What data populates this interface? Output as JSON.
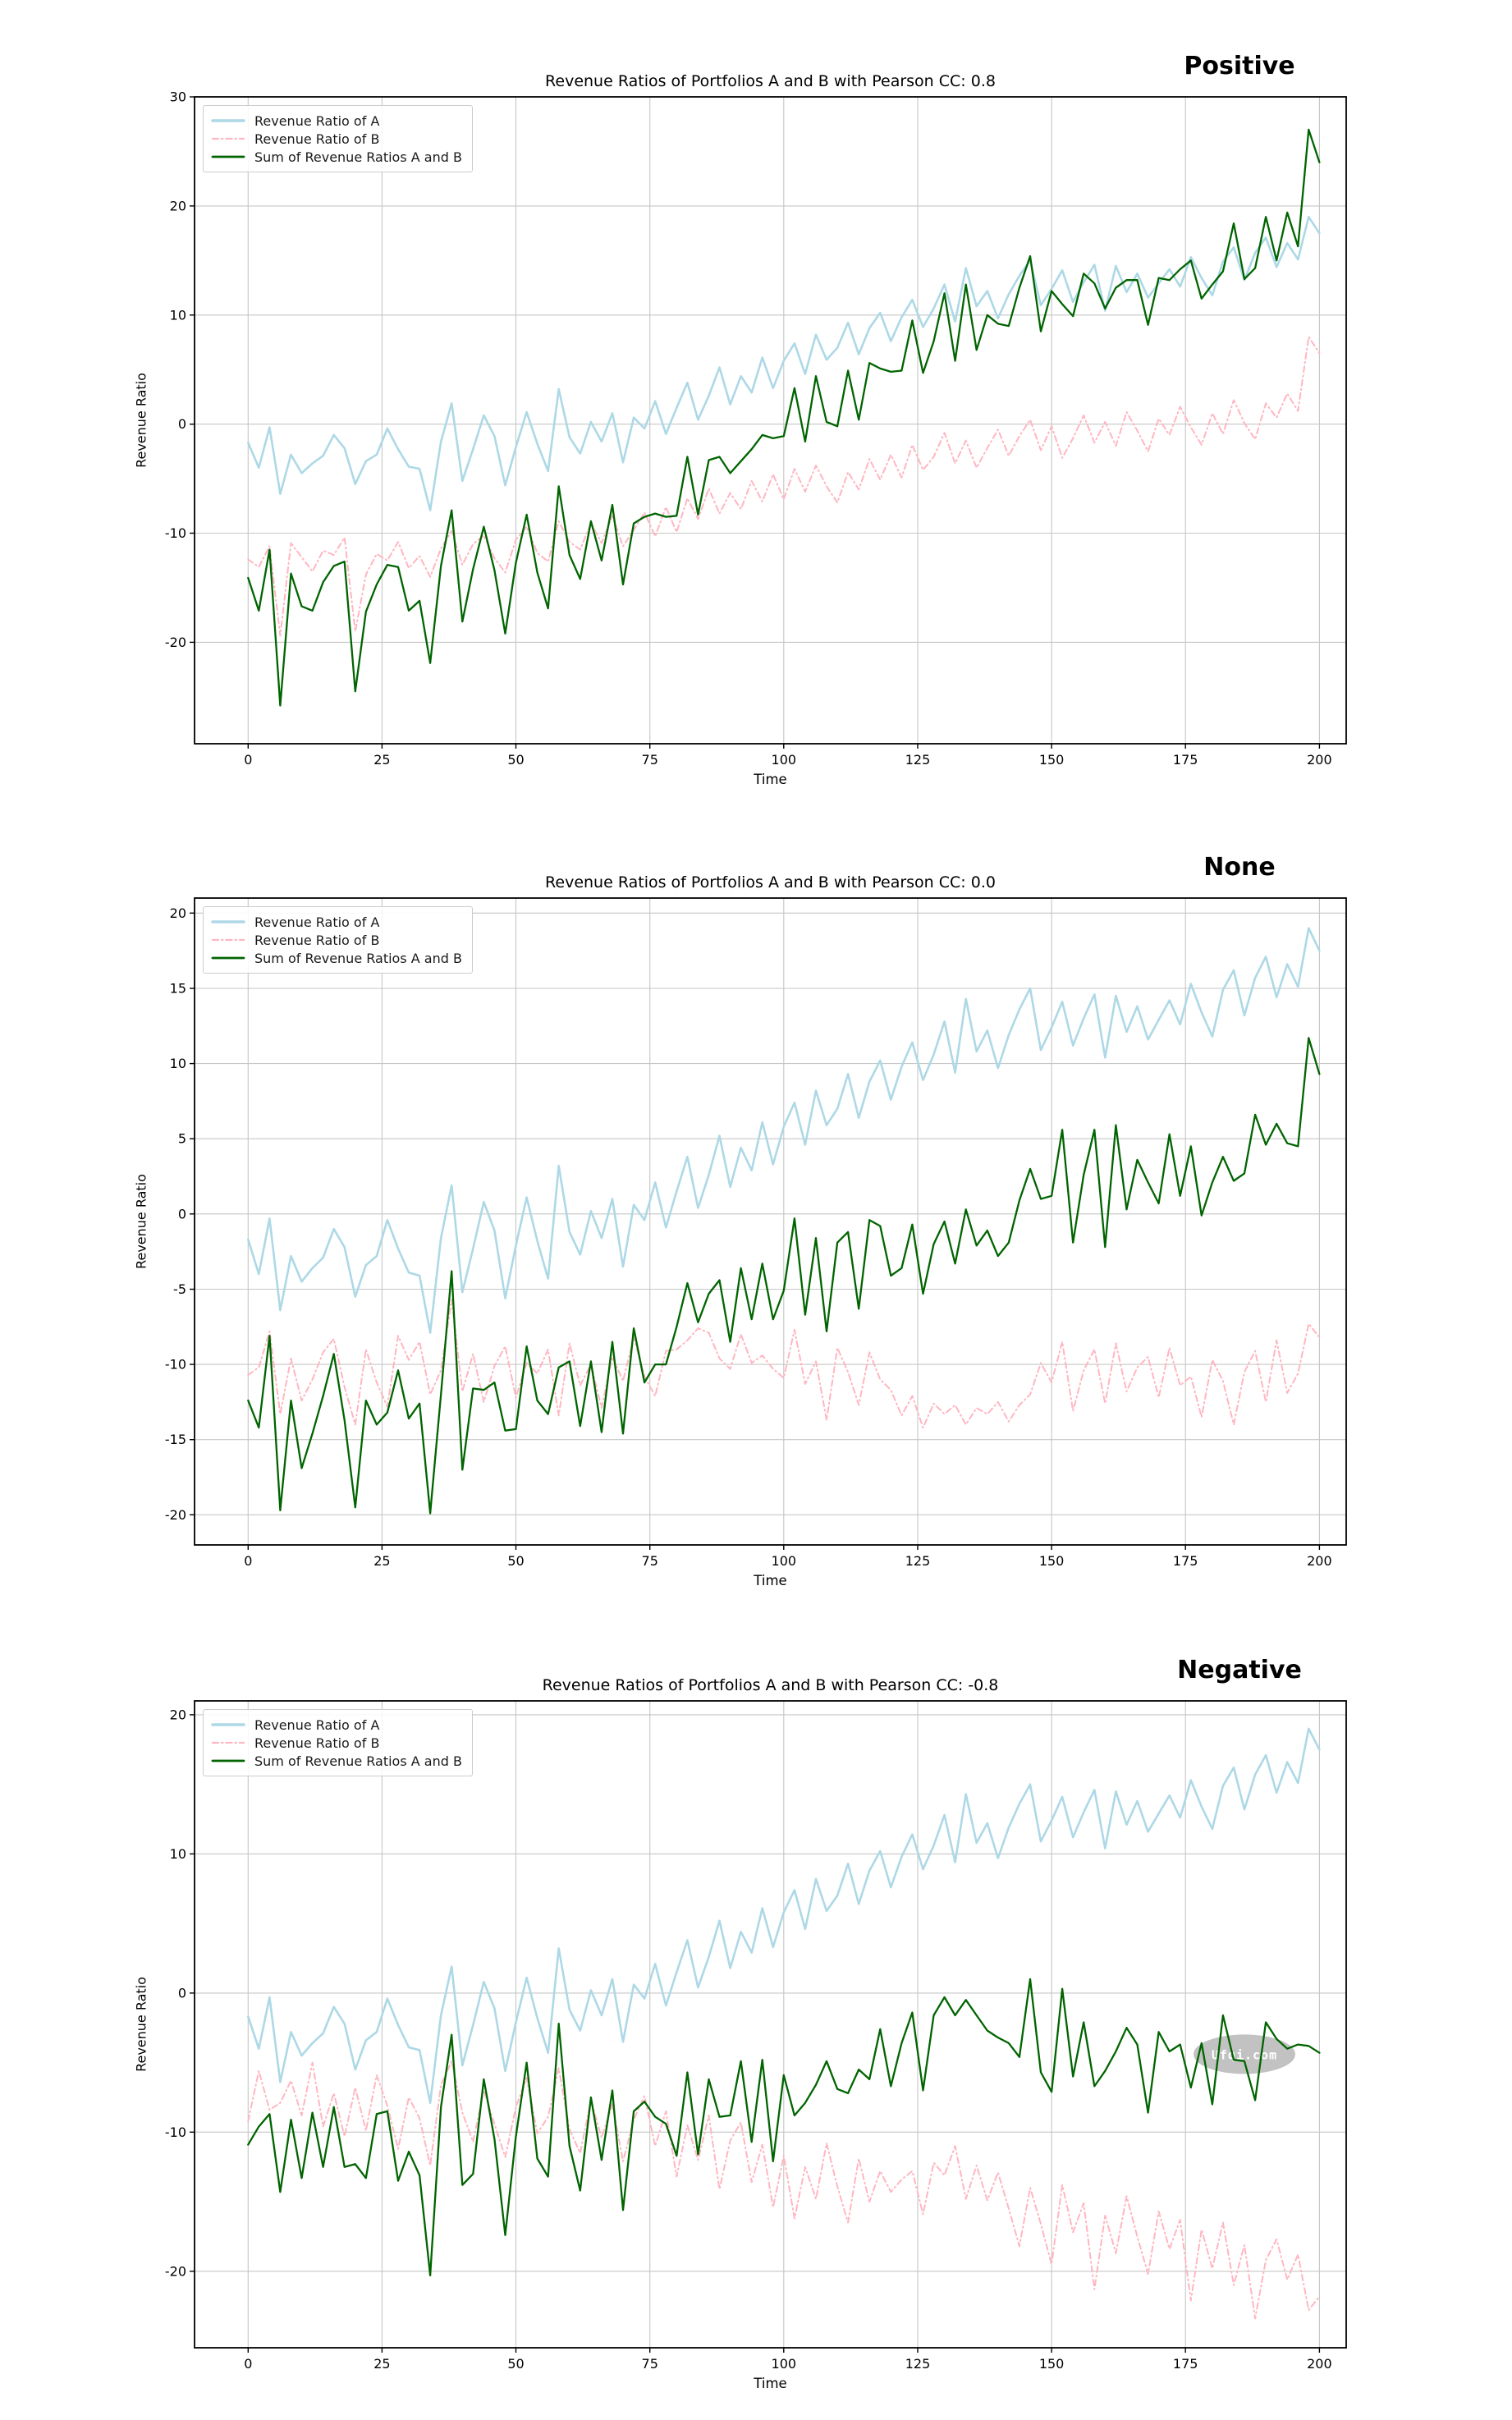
{
  "page": {
    "background": "#ffffff",
    "description": "Three stacked line charts of portfolio revenue ratios with different Pearson correlation coefficients"
  },
  "colors": {
    "series_a": "#ADD8E6",
    "series_b": "#FFB6C1",
    "series_sum": "#006400",
    "grid": "#c6c6c6",
    "spine": "#000000",
    "tick_text": "#000000",
    "watermark_bg": "#bdbdbd",
    "watermark_text": "#ffffff"
  },
  "chart_x": [
    0,
    2,
    4,
    6,
    8,
    10,
    12,
    14,
    16,
    18,
    20,
    22,
    24,
    26,
    28,
    30,
    32,
    34,
    36,
    38,
    40,
    42,
    44,
    46,
    48,
    50,
    52,
    54,
    56,
    58,
    60,
    62,
    64,
    66,
    68,
    70,
    72,
    74,
    76,
    78,
    80,
    82,
    84,
    86,
    88,
    90,
    92,
    94,
    96,
    98,
    100,
    102,
    104,
    106,
    108,
    110,
    112,
    114,
    116,
    118,
    120,
    122,
    124,
    126,
    128,
    130,
    132,
    134,
    136,
    138,
    140,
    142,
    144,
    146,
    148,
    150,
    152,
    154,
    156,
    158,
    160,
    162,
    164,
    166,
    168,
    170,
    172,
    174,
    176,
    178,
    180,
    182,
    184,
    186,
    188,
    190,
    192,
    194,
    196,
    198,
    200
  ],
  "chart_data": [
    {
      "type": "line",
      "title": "Revenue Ratios of Portfolios A and B with Pearson CC: 0.8",
      "annotation": "Positive",
      "xlabel": "Time",
      "ylabel": "Revenue Ratio",
      "xlim": [
        -10,
        205
      ],
      "ylim": [
        -29.3,
        30
      ],
      "xticks": [
        0,
        25,
        50,
        75,
        100,
        125,
        150,
        175,
        200
      ],
      "yticks": [
        30,
        20,
        10,
        0,
        -10,
        -20
      ],
      "grid": true,
      "legend_position": "upper-left",
      "series": [
        {
          "name": "Revenue Ratio of A",
          "color": "#ADD8E6",
          "style": "solid",
          "values": [
            -1.7,
            -4.0,
            -0.3,
            -6.4,
            -2.8,
            -4.5,
            -3.6,
            -2.9,
            -1.0,
            -2.2,
            -5.5,
            -3.4,
            -2.8,
            -0.4,
            -2.3,
            -3.9,
            -4.1,
            -7.9,
            -1.6,
            1.9,
            -5.2,
            -2.3,
            0.8,
            -1.1,
            -5.6,
            -2.1,
            1.1,
            -1.8,
            -4.3,
            3.2,
            -1.2,
            -2.7,
            0.2,
            -1.6,
            1.0,
            -3.5,
            0.6,
            -0.4,
            2.1,
            -0.9,
            1.5,
            3.8,
            0.4,
            2.6,
            5.2,
            1.8,
            4.4,
            2.9,
            6.1,
            3.3,
            5.8,
            7.4,
            4.6,
            8.2,
            5.9,
            7.0,
            9.3,
            6.4,
            8.8,
            10.2,
            7.6,
            9.8,
            11.4,
            8.9,
            10.6,
            12.8,
            9.4,
            14.3,
            10.8,
            12.2,
            9.7,
            11.9,
            13.6,
            15.0,
            10.9,
            12.4,
            14.1,
            11.2,
            13.0,
            14.6,
            10.4,
            14.5,
            12.1,
            13.8,
            11.6,
            12.9,
            14.2,
            12.6,
            15.3,
            13.4,
            11.8,
            14.9,
            16.2,
            13.2,
            15.7,
            17.1,
            14.4,
            16.6,
            15.1,
            19.0,
            17.5
          ]
        },
        {
          "name": "Revenue Ratio of B",
          "color": "#FFB6C1",
          "style": "dashdot",
          "values": [
            -12.4,
            -13.1,
            -11.2,
            -19.4,
            -10.9,
            -12.2,
            -13.5,
            -11.6,
            -12.0,
            -10.4,
            -19.0,
            -13.8,
            -11.9,
            -12.5,
            -10.8,
            -13.2,
            -12.1,
            -14.0,
            -11.4,
            -9.8,
            -12.9,
            -11.0,
            -10.2,
            -12.3,
            -13.6,
            -10.6,
            -9.4,
            -11.8,
            -12.6,
            -8.9,
            -10.8,
            -11.5,
            -9.1,
            -10.9,
            -8.4,
            -11.2,
            -9.7,
            -8.1,
            -10.3,
            -7.6,
            -9.9,
            -6.8,
            -8.7,
            -5.9,
            -8.2,
            -6.3,
            -7.8,
            -5.2,
            -7.1,
            -4.6,
            -6.9,
            -4.1,
            -6.2,
            -3.8,
            -5.7,
            -7.2,
            -4.4,
            -6.0,
            -3.2,
            -5.1,
            -2.8,
            -4.9,
            -1.9,
            -4.2,
            -3.0,
            -0.8,
            -3.6,
            -1.5,
            -4.0,
            -2.2,
            -0.5,
            -2.9,
            -1.1,
            0.4,
            -2.4,
            -0.2,
            -3.1,
            -1.3,
            0.8,
            -1.7,
            0.2,
            -2.0,
            1.1,
            -0.6,
            -2.5,
            0.5,
            -1.0,
            1.6,
            -0.3,
            -1.9,
            1.0,
            -0.9,
            2.2,
            0.1,
            -1.4,
            1.9,
            0.6,
            2.8,
            1.2,
            8.0,
            6.5
          ]
        },
        {
          "name": "Sum of Revenue Ratios A and B",
          "color": "#006400",
          "style": "solid",
          "operation": "sum_of_first_two_series"
        }
      ]
    },
    {
      "type": "line",
      "title": "Revenue Ratios of Portfolios A and B with Pearson CC: 0.0",
      "annotation": "None",
      "xlabel": "Time",
      "ylabel": "Revenue Ratio",
      "xlim": [
        -10,
        205
      ],
      "ylim": [
        -22,
        21
      ],
      "xticks": [
        0,
        25,
        50,
        75,
        100,
        125,
        150,
        175,
        200
      ],
      "yticks": [
        20,
        15,
        10,
        5,
        0,
        -5,
        -10,
        -15,
        -20
      ],
      "grid": true,
      "legend_position": "upper-left",
      "series": [
        {
          "name": "Revenue Ratio of A",
          "color": "#ADD8E6",
          "style": "solid",
          "values": [
            -1.7,
            -4.0,
            -0.3,
            -6.4,
            -2.8,
            -4.5,
            -3.6,
            -2.9,
            -1.0,
            -2.2,
            -5.5,
            -3.4,
            -2.8,
            -0.4,
            -2.3,
            -3.9,
            -4.1,
            -7.9,
            -1.6,
            1.9,
            -5.2,
            -2.3,
            0.8,
            -1.1,
            -5.6,
            -2.1,
            1.1,
            -1.8,
            -4.3,
            3.2,
            -1.2,
            -2.7,
            0.2,
            -1.6,
            1.0,
            -3.5,
            0.6,
            -0.4,
            2.1,
            -0.9,
            1.5,
            3.8,
            0.4,
            2.6,
            5.2,
            1.8,
            4.4,
            2.9,
            6.1,
            3.3,
            5.8,
            7.4,
            4.6,
            8.2,
            5.9,
            7.0,
            9.3,
            6.4,
            8.8,
            10.2,
            7.6,
            9.8,
            11.4,
            8.9,
            10.6,
            12.8,
            9.4,
            14.3,
            10.8,
            12.2,
            9.7,
            11.9,
            13.6,
            15.0,
            10.9,
            12.4,
            14.1,
            11.2,
            13.0,
            14.6,
            10.4,
            14.5,
            12.1,
            13.8,
            11.6,
            12.9,
            14.2,
            12.6,
            15.3,
            13.4,
            11.8,
            14.9,
            16.2,
            13.2,
            15.7,
            17.1,
            14.4,
            16.6,
            15.1,
            19.0,
            17.5
          ]
        },
        {
          "name": "Revenue Ratio of B",
          "color": "#FFB6C1",
          "style": "dashdot",
          "values": [
            -10.7,
            -10.2,
            -7.8,
            -13.3,
            -9.6,
            -12.4,
            -11.0,
            -9.2,
            -8.3,
            -11.5,
            -14.0,
            -9.0,
            -11.2,
            -12.8,
            -8.1,
            -9.7,
            -8.5,
            -12.0,
            -10.4,
            -5.7,
            -11.8,
            -9.3,
            -12.5,
            -10.1,
            -8.8,
            -12.2,
            -9.9,
            -10.6,
            -9.0,
            -13.4,
            -8.6,
            -11.4,
            -10.0,
            -12.9,
            -9.5,
            -11.1,
            -8.2,
            -10.8,
            -12.1,
            -9.1,
            -9.0,
            -8.4,
            -7.6,
            -7.9,
            -9.6,
            -10.3,
            -8.0,
            -9.9,
            -9.4,
            -10.3,
            -10.9,
            -7.7,
            -11.3,
            -9.8,
            -13.7,
            -8.9,
            -10.5,
            -12.7,
            -9.2,
            -11.0,
            -11.7,
            -13.4,
            -12.1,
            -14.2,
            -12.6,
            -13.3,
            -12.7,
            -14.0,
            -12.9,
            -13.3,
            -12.5,
            -13.8,
            -12.7,
            -12.0,
            -9.9,
            -11.2,
            -8.5,
            -13.1,
            -10.4,
            -9.0,
            -12.6,
            -8.6,
            -11.8,
            -10.2,
            -9.5,
            -12.2,
            -8.9,
            -11.4,
            -10.8,
            -13.5,
            -9.7,
            -11.1,
            -14.0,
            -10.5,
            -9.1,
            -12.5,
            -8.4,
            -11.9,
            -10.6,
            -7.3,
            -8.2
          ]
        },
        {
          "name": "Sum of Revenue Ratios A and B",
          "color": "#006400",
          "style": "solid",
          "operation": "sum_of_first_two_series"
        }
      ]
    },
    {
      "type": "line",
      "title": "Revenue Ratios of Portfolios A and B with Pearson CC: -0.8",
      "annotation": "Negative",
      "xlabel": "Time",
      "ylabel": "Revenue Ratio",
      "xlim": [
        -10,
        205
      ],
      "ylim": [
        -25.5,
        21
      ],
      "xticks": [
        0,
        25,
        50,
        75,
        100,
        125,
        150,
        175,
        200
      ],
      "yticks": [
        20,
        10,
        0,
        -10,
        -20
      ],
      "grid": true,
      "legend_position": "upper-left",
      "watermark": {
        "text": "Ufqi.com",
        "x": 186,
        "y": -4.4,
        "rx": 62,
        "ry": 24
      },
      "series": [
        {
          "name": "Revenue Ratio of A",
          "color": "#ADD8E6",
          "style": "solid",
          "values": [
            -1.7,
            -4.0,
            -0.3,
            -6.4,
            -2.8,
            -4.5,
            -3.6,
            -2.9,
            -1.0,
            -2.2,
            -5.5,
            -3.4,
            -2.8,
            -0.4,
            -2.3,
            -3.9,
            -4.1,
            -7.9,
            -1.6,
            1.9,
            -5.2,
            -2.3,
            0.8,
            -1.1,
            -5.6,
            -2.1,
            1.1,
            -1.8,
            -4.3,
            3.2,
            -1.2,
            -2.7,
            0.2,
            -1.6,
            1.0,
            -3.5,
            0.6,
            -0.4,
            2.1,
            -0.9,
            1.5,
            3.8,
            0.4,
            2.6,
            5.2,
            1.8,
            4.4,
            2.9,
            6.1,
            3.3,
            5.8,
            7.4,
            4.6,
            8.2,
            5.9,
            7.0,
            9.3,
            6.4,
            8.8,
            10.2,
            7.6,
            9.8,
            11.4,
            8.9,
            10.6,
            12.8,
            9.4,
            14.3,
            10.8,
            12.2,
            9.7,
            11.9,
            13.6,
            15.0,
            10.9,
            12.4,
            14.1,
            11.2,
            13.0,
            14.6,
            10.4,
            14.5,
            12.1,
            13.8,
            11.6,
            12.9,
            14.2,
            12.6,
            15.3,
            13.4,
            11.8,
            14.9,
            16.2,
            13.2,
            15.7,
            17.1,
            14.4,
            16.6,
            15.1,
            19.0,
            17.5
          ]
        },
        {
          "name": "Revenue Ratio of B",
          "color": "#FFB6C1",
          "style": "dashdot",
          "values": [
            -9.2,
            -5.6,
            -8.4,
            -7.9,
            -6.3,
            -8.8,
            -5.0,
            -9.6,
            -7.2,
            -10.3,
            -6.8,
            -9.9,
            -5.9,
            -8.1,
            -11.2,
            -7.5,
            -9.0,
            -12.4,
            -6.6,
            -4.9,
            -8.6,
            -10.7,
            -7.0,
            -9.4,
            -11.8,
            -8.2,
            -6.1,
            -10.1,
            -8.9,
            -5.4,
            -9.8,
            -11.5,
            -7.7,
            -10.4,
            -8.0,
            -12.1,
            -9.1,
            -7.4,
            -11.0,
            -8.5,
            -13.2,
            -9.5,
            -12.0,
            -8.8,
            -14.1,
            -10.6,
            -9.3,
            -13.6,
            -10.9,
            -15.4,
            -11.7,
            -16.2,
            -12.5,
            -14.8,
            -10.8,
            -13.9,
            -16.5,
            -11.9,
            -15.0,
            -12.8,
            -14.3,
            -13.4,
            -12.8,
            -15.9,
            -12.2,
            -13.1,
            -11.0,
            -14.8,
            -12.4,
            -14.9,
            -12.9,
            -15.5,
            -18.2,
            -14.0,
            -16.6,
            -19.5,
            -13.8,
            -17.2,
            -15.1,
            -21.3,
            -16.0,
            -18.7,
            -14.6,
            -17.5,
            -20.2,
            -15.7,
            -18.4,
            -16.3,
            -22.1,
            -17.0,
            -19.8,
            -16.5,
            -21.0,
            -18.1,
            -23.4,
            -19.2,
            -17.7,
            -20.6,
            -18.8,
            -22.8,
            -21.8
          ]
        },
        {
          "name": "Sum of Revenue Ratios A and B",
          "color": "#006400",
          "style": "solid",
          "operation": "sum_of_first_two_series"
        }
      ]
    }
  ]
}
